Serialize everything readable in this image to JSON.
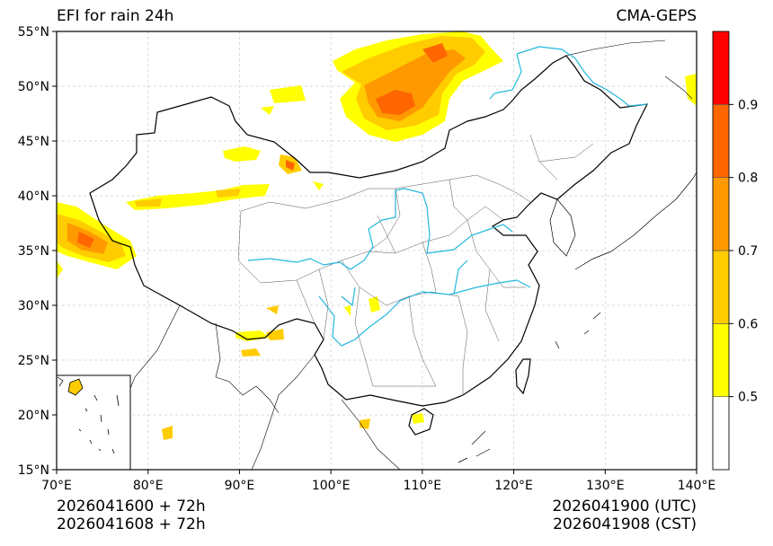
{
  "title_left": "EFI for rain 24h",
  "title_right": "CMA-GEPS",
  "map": {
    "lon_range": [
      70,
      140
    ],
    "lat_range": [
      15,
      55
    ],
    "lon_ticks": [
      {
        "value": 70,
        "label": "70°E"
      },
      {
        "value": 80,
        "label": "80°E"
      },
      {
        "value": 90,
        "label": "90°E"
      },
      {
        "value": 100,
        "label": "100°E"
      },
      {
        "value": 110,
        "label": "110°E"
      },
      {
        "value": 120,
        "label": "120°E"
      },
      {
        "value": 130,
        "label": "130°E"
      },
      {
        "value": 140,
        "label": "140°E"
      }
    ],
    "lat_ticks": [
      {
        "value": 15,
        "label": "15°N"
      },
      {
        "value": 20,
        "label": "20°N"
      },
      {
        "value": 25,
        "label": "25°N"
      },
      {
        "value": 30,
        "label": "30°N"
      },
      {
        "value": 35,
        "label": "35°N"
      },
      {
        "value": 40,
        "label": "40°N"
      },
      {
        "value": 45,
        "label": "45°N"
      },
      {
        "value": 50,
        "label": "50°N"
      },
      {
        "value": 55,
        "label": "55°N"
      }
    ],
    "gridlines": true
  },
  "colorbar": {
    "levels": [
      0.4,
      0.5,
      0.6,
      0.7,
      0.8,
      0.9,
      1.0
    ],
    "colors": [
      "#ffffff",
      "#ffff00",
      "#ffcc00",
      "#ff9900",
      "#ff6600",
      "#ff0000"
    ],
    "tick_labels": [
      {
        "value": 0.5,
        "label": "0.5"
      },
      {
        "value": 0.6,
        "label": "0.6"
      },
      {
        "value": 0.7,
        "label": "0.7"
      },
      {
        "value": 0.8,
        "label": "0.8"
      },
      {
        "value": 0.9,
        "label": "0.9"
      }
    ]
  },
  "footer": {
    "init_utc": "2026041600 + 72h",
    "init_cst": "2026041608 + 72h",
    "valid_utc": "2026041900 (UTC)",
    "valid_cst": "2026041908 (CST)"
  },
  "colors": {
    "river": "#22b8dd",
    "border": "#000000",
    "province": "#555555"
  }
}
